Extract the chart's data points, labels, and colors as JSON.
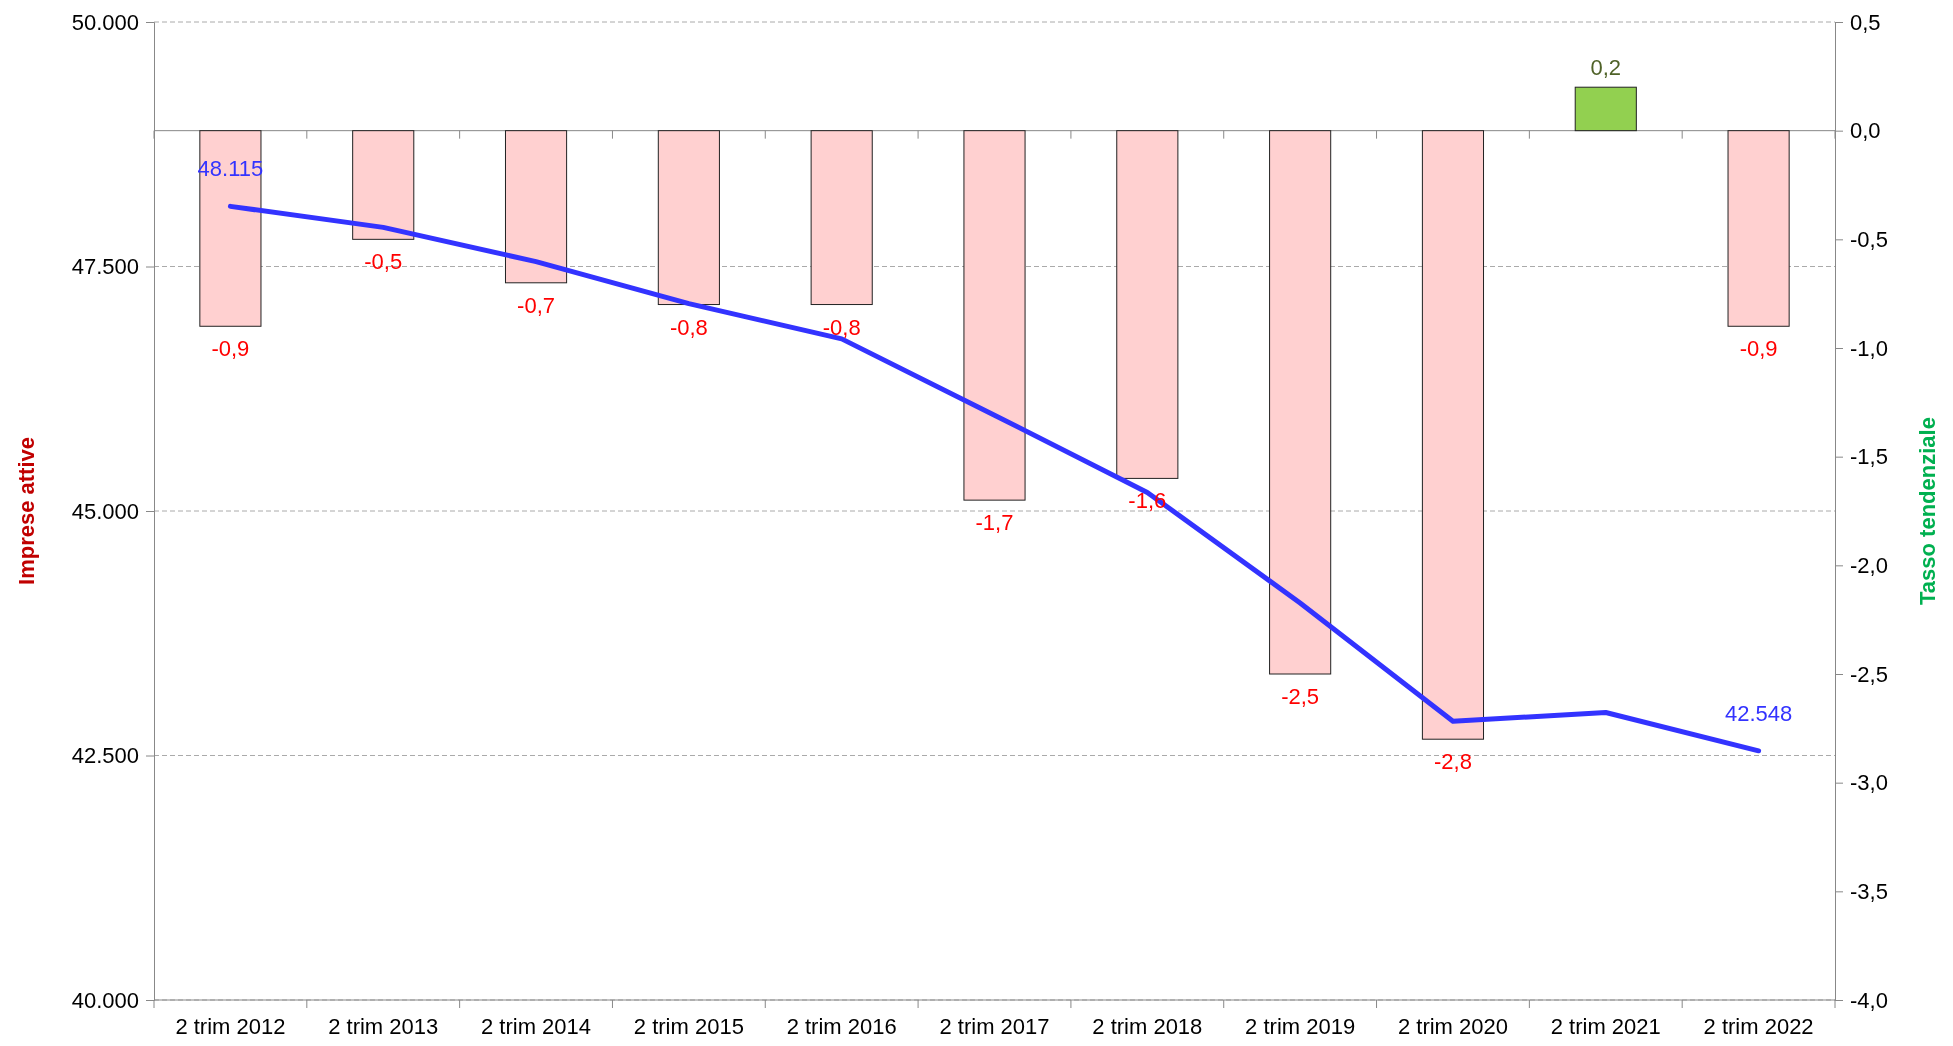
{
  "chart_data": {
    "type": "bar",
    "ylabel": "Imprese attive",
    "y2label": "Tasso tendenziale",
    "categories": [
      "2 trim 2012",
      "2 trim 2013",
      "2 trim 2014",
      "2 trim 2015",
      "2 trim 2016",
      "2 trim 2017",
      "2 trim 2018",
      "2 trim 2019",
      "2 trim 2020",
      "2 trim 2021",
      "2 trim 2022"
    ],
    "series": [
      {
        "axis": "y2",
        "colors": [
          "#ffd0d0",
          "#ffd0d0",
          "#ffd0d0",
          "#ffd0d0",
          "#ffd0d0",
          "#ffd0d0",
          "#ffd0d0",
          "#ffd0d0",
          "#ffd0d0",
          "#92d050",
          "#ffd0d0"
        ],
        "values": [
          -0.9,
          -0.5,
          -0.7,
          -0.8,
          -0.8,
          -1.7,
          -1.6,
          -2.5,
          -2.8,
          0.2,
          -0.9
        ],
        "value_labels": [
          "-0,9",
          "-0,5",
          "-0,7",
          "-0,8",
          "-0,8",
          "-1,7",
          "-1,6",
          "-2,5",
          "-2,8",
          "0,2",
          "-0,9"
        ]
      },
      {
        "type": "line",
        "axis": "y",
        "color": "#3333ff",
        "values": [
          48115,
          47900,
          47550,
          47120,
          46760,
          45980,
          45190,
          44060,
          42850,
          42940,
          42548
        ],
        "value_labels": [
          "48.115",
          null,
          null,
          null,
          null,
          null,
          null,
          null,
          null,
          null,
          "42.548"
        ]
      }
    ],
    "ylim": [
      40000,
      50000
    ],
    "yticks": [
      {
        "value": 40000,
        "label": "40.000"
      },
      {
        "value": 42500,
        "label": "42.500"
      },
      {
        "value": 45000,
        "label": "45.000"
      },
      {
        "value": 47500,
        "label": "47.500"
      },
      {
        "value": 50000,
        "label": "50.000"
      }
    ],
    "y2lim": [
      -4,
      0.5
    ],
    "y2ticks": [
      {
        "value": -4,
        "label": "-4,0"
      },
      {
        "value": -3.5,
        "label": "-3,5"
      },
      {
        "value": -3,
        "label": "-3,0"
      },
      {
        "value": -2.5,
        "label": "-2,5"
      },
      {
        "value": -2,
        "label": "-2,0"
      },
      {
        "value": -1.5,
        "label": "-1,5"
      },
      {
        "value": -1,
        "label": "-1,0"
      },
      {
        "value": -0.5,
        "label": "-0,5"
      },
      {
        "value": 0,
        "label": "0,0"
      },
      {
        "value": 0.5,
        "label": "0,5"
      }
    ],
    "grid": "y",
    "marker": "none",
    "line_style": "solid"
  }
}
